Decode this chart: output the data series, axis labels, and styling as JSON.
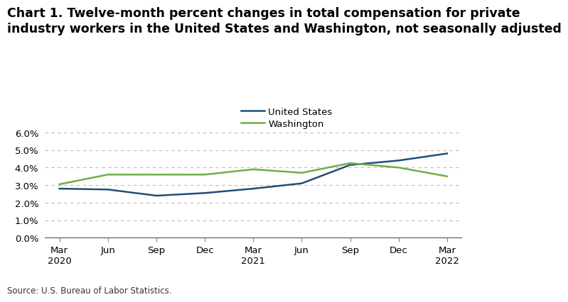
{
  "title_line1": "Chart 1. Twelve-month percent changes in total compensation for private",
  "title_line2": "industry workers in the United States and Washington, not seasonally adjusted",
  "x_labels": [
    "Mar\n2020",
    "Jun",
    "Sep",
    "Dec",
    "Mar\n2021",
    "Jun",
    "Sep",
    "Dec",
    "Mar\n2022"
  ],
  "us_values": [
    2.8,
    2.75,
    2.4,
    2.55,
    2.8,
    3.1,
    4.15,
    4.4,
    4.8
  ],
  "wa_values": [
    3.05,
    3.6,
    3.6,
    3.6,
    3.9,
    3.7,
    4.25,
    4.0,
    3.5
  ],
  "us_color": "#1f4e79",
  "wa_color": "#70ad47",
  "ylim": [
    0.0,
    6.0
  ],
  "yticks": [
    0.0,
    1.0,
    2.0,
    3.0,
    4.0,
    5.0,
    6.0
  ],
  "grid_color": "#bbbbbb",
  "background_color": "#ffffff",
  "source_text": "Source: U.S. Bureau of Labor Statistics.",
  "legend_us": "United States",
  "legend_wa": "Washington",
  "title_fontsize": 12.5,
  "tick_fontsize": 9.5,
  "legend_fontsize": 9.5,
  "source_fontsize": 8.5,
  "line_width": 1.8
}
